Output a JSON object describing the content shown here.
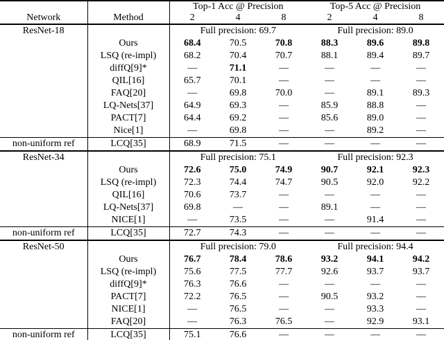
{
  "colors": {
    "text": "#000000",
    "background": "#ffffff",
    "rule": "#000000"
  },
  "table": {
    "header": {
      "network": "Network",
      "method": "Method",
      "group_top1": "Top-1 Acc @ Precision",
      "group_top5": "Top-5 Acc @ Precision",
      "precisions": [
        "2",
        "4",
        "8",
        "2",
        "4",
        "8"
      ]
    },
    "sections": [
      {
        "network": "ResNet-18",
        "fp_top1": "Full precision: 69.7",
        "fp_top5": "Full precision: 89.0",
        "rows": [
          {
            "method": "Ours",
            "values": [
              "68.4",
              "70.5",
              "70.8",
              "88.3",
              "89.6",
              "89.8"
            ],
            "bold": [
              1,
              0,
              1,
              1,
              1,
              1
            ]
          },
          {
            "method": "LSQ (re-impl)",
            "values": [
              "68.2",
              "70.4",
              "70.7",
              "88.1",
              "89.4",
              "89.7"
            ],
            "bold": [
              0,
              0,
              0,
              0,
              0,
              0
            ]
          },
          {
            "method": "diffQ[9]*",
            "values": [
              "—",
              "71.1",
              "—",
              "—",
              "—",
              "—"
            ],
            "bold": [
              0,
              1,
              0,
              0,
              0,
              0
            ]
          },
          {
            "method": "QIL[16]",
            "values": [
              "65.7",
              "70.1",
              "—",
              "—",
              "—",
              "—"
            ],
            "bold": [
              0,
              0,
              0,
              0,
              0,
              0
            ]
          },
          {
            "method": "FAQ[20]",
            "values": [
              "—",
              "69.8",
              "70.0",
              "—",
              "89.1",
              "89.3"
            ],
            "bold": [
              0,
              0,
              0,
              0,
              0,
              0
            ]
          },
          {
            "method": "LQ-Nets[37]",
            "values": [
              "64.9",
              "69.3",
              "—",
              "85.9",
              "88.8",
              "—"
            ],
            "bold": [
              0,
              0,
              0,
              0,
              0,
              0
            ]
          },
          {
            "method": "PACT[7]",
            "values": [
              "64.4",
              "69.2",
              "—",
              "85.6",
              "89.0",
              "—"
            ],
            "bold": [
              0,
              0,
              0,
              0,
              0,
              0
            ]
          },
          {
            "method": "Nice[1]",
            "values": [
              "—",
              "69.8",
              "—",
              "—",
              "89.2",
              "—"
            ],
            "bold": [
              0,
              0,
              0,
              0,
              0,
              0
            ]
          }
        ],
        "ref": {
          "network": "non-uniform ref",
          "method": "LCQ[35]",
          "values": [
            "68.9",
            "71.5",
            "—",
            "—",
            "—",
            "—"
          ],
          "bold": [
            0,
            0,
            0,
            0,
            0,
            0
          ]
        }
      },
      {
        "network": "ResNet-34",
        "fp_top1": "Full precision: 75.1",
        "fp_top5": "Full precision: 92.3",
        "rows": [
          {
            "method": "Ours",
            "values": [
              "72.6",
              "75.0",
              "74.9",
              "90.7",
              "92.1",
              "92.3"
            ],
            "bold": [
              1,
              1,
              1,
              1,
              1,
              1
            ]
          },
          {
            "method": "LSQ (re-impl)",
            "values": [
              "72.3",
              "74.4",
              "74.7",
              "90.5",
              "92.0",
              "92.2"
            ],
            "bold": [
              0,
              0,
              0,
              0,
              0,
              0
            ]
          },
          {
            "method": "QIL[16]",
            "values": [
              "70.6",
              "73.7",
              "—",
              "—",
              "—",
              "—"
            ],
            "bold": [
              0,
              0,
              0,
              0,
              0,
              0
            ]
          },
          {
            "method": "LQ-Nets[37]",
            "values": [
              "69.8",
              "—",
              "—",
              "89.1",
              "—",
              "—"
            ],
            "bold": [
              0,
              0,
              0,
              0,
              0,
              0
            ]
          },
          {
            "method": "NICE[1]",
            "values": [
              "—",
              "73.5",
              "—",
              "—",
              "91.4",
              "—"
            ],
            "bold": [
              0,
              0,
              0,
              0,
              0,
              0
            ]
          }
        ],
        "ref": {
          "network": "non-uniform ref",
          "method": "LCQ[35]",
          "values": [
            "72.7",
            "74.3",
            "—",
            "—",
            "—",
            "—"
          ],
          "bold": [
            0,
            0,
            0,
            0,
            0,
            0
          ]
        }
      },
      {
        "network": "ResNet-50",
        "fp_top1": "Full precision: 79.0",
        "fp_top5": "Full precision: 94.4",
        "rows": [
          {
            "method": "Ours",
            "values": [
              "76.7",
              "78.4",
              "78.6",
              "93.2",
              "94.1",
              "94.2"
            ],
            "bold": [
              1,
              1,
              1,
              1,
              1,
              1
            ]
          },
          {
            "method": "LSQ (re-impl)",
            "values": [
              "75.6",
              "77.5",
              "77.7",
              "92.6",
              "93.7",
              "93.7"
            ],
            "bold": [
              0,
              0,
              0,
              0,
              0,
              0
            ]
          },
          {
            "method": "diffQ[9]*",
            "values": [
              "76.3",
              "76.6",
              "—",
              "—",
              "—",
              "—"
            ],
            "bold": [
              0,
              0,
              0,
              0,
              0,
              0
            ]
          },
          {
            "method": "PACT[7]",
            "values": [
              "72.2",
              "76.5",
              "—",
              "90.5",
              "93.2",
              "—"
            ],
            "bold": [
              0,
              0,
              0,
              0,
              0,
              0
            ]
          },
          {
            "method": "NICE[1]",
            "values": [
              "—",
              "76.5",
              "—",
              "—",
              "93.3",
              "—"
            ],
            "bold": [
              0,
              0,
              0,
              0,
              0,
              0
            ]
          },
          {
            "method": "FAQ[20]",
            "values": [
              "—",
              "76.3",
              "76.5",
              "—",
              "92.9",
              "93.1"
            ],
            "bold": [
              0,
              0,
              0,
              0,
              0,
              0
            ]
          }
        ],
        "ref": {
          "network": "non-uniform ref",
          "method": "LCQ[35]",
          "values": [
            "75.1",
            "76.6",
            "—",
            "—",
            "—",
            "—"
          ],
          "bold": [
            0,
            0,
            0,
            0,
            0,
            0
          ]
        }
      }
    ]
  }
}
